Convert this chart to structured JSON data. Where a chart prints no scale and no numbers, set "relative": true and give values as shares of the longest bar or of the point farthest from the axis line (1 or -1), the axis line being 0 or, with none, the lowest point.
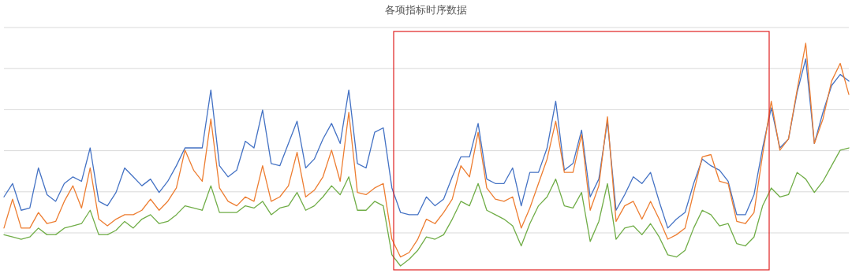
{
  "chart_data": {
    "type": "line",
    "title": "各项指标时序数据",
    "relative": true,
    "grid": "y",
    "marker": "none",
    "line_style": "solid",
    "categories": [
      null,
      null,
      null,
      null,
      null,
      null,
      null,
      null,
      null,
      null,
      null,
      null,
      null,
      null,
      null,
      null,
      null,
      null,
      null,
      null,
      null,
      null,
      null,
      null,
      null,
      null,
      null,
      null,
      null,
      null,
      null,
      null,
      null,
      null,
      null,
      null,
      null,
      null,
      null,
      null,
      null,
      null,
      null,
      null,
      null,
      null,
      null,
      null,
      null,
      null,
      null,
      null,
      null,
      null,
      null,
      null,
      null,
      null,
      null,
      null,
      null,
      null,
      null,
      null,
      null,
      null,
      null,
      null,
      null,
      null,
      null,
      null,
      null,
      null,
      null,
      null,
      null,
      null,
      null,
      null,
      null,
      null,
      null,
      null,
      null,
      null,
      null,
      null,
      null,
      null,
      null,
      null,
      null,
      null,
      null,
      null,
      null,
      null,
      null
    ],
    "series": [
      {
        "color": "#4472c4",
        "values": [
          0.31,
          0.37,
          0.25,
          0.26,
          0.44,
          0.32,
          0.29,
          0.37,
          0.4,
          0.38,
          0.53,
          0.29,
          0.27,
          0.33,
          0.44,
          0.4,
          0.36,
          0.39,
          0.33,
          0.38,
          0.45,
          0.53,
          0.53,
          0.53,
          0.79,
          0.45,
          0.4,
          0.43,
          0.56,
          0.53,
          0.7,
          0.46,
          0.45,
          0.55,
          0.65,
          0.44,
          0.48,
          0.57,
          0.64,
          0.55,
          0.79,
          0.46,
          0.44,
          0.6,
          0.62,
          0.35,
          0.24,
          0.23,
          0.23,
          0.31,
          0.27,
          0.3,
          0.4,
          0.49,
          0.49,
          0.64,
          0.39,
          0.37,
          0.37,
          0.44,
          0.27,
          0.42,
          0.42,
          0.53,
          0.74,
          0.43,
          0.46,
          0.61,
          0.31,
          0.39,
          0.65,
          0.25,
          0.32,
          0.4,
          0.37,
          0.42,
          0.29,
          0.17,
          0.21,
          0.24,
          0.37,
          0.48,
          0.45,
          0.43,
          0.38,
          0.23,
          0.23,
          0.32,
          0.53,
          0.71,
          0.53,
          0.57,
          0.78,
          0.93,
          0.55,
          0.69,
          0.81,
          0.86,
          0.83
        ]
      },
      {
        "color": "#ed7d31",
        "values": [
          0.17,
          0.3,
          0.17,
          0.17,
          0.24,
          0.19,
          0.2,
          0.29,
          0.36,
          0.26,
          0.44,
          0.21,
          0.18,
          0.21,
          0.23,
          0.23,
          0.25,
          0.3,
          0.25,
          0.29,
          0.35,
          0.52,
          0.43,
          0.38,
          0.66,
          0.35,
          0.29,
          0.27,
          0.31,
          0.29,
          0.45,
          0.29,
          0.31,
          0.36,
          0.51,
          0.31,
          0.34,
          0.4,
          0.52,
          0.38,
          0.69,
          0.33,
          0.32,
          0.35,
          0.37,
          0.12,
          0.04,
          0.06,
          0.12,
          0.21,
          0.19,
          0.24,
          0.3,
          0.45,
          0.4,
          0.6,
          0.35,
          0.3,
          0.29,
          0.31,
          0.17,
          0.26,
          0.37,
          0.48,
          0.65,
          0.42,
          0.42,
          0.59,
          0.25,
          0.36,
          0.67,
          0.2,
          0.27,
          0.29,
          0.21,
          0.29,
          0.21,
          0.12,
          0.14,
          0.17,
          0.33,
          0.49,
          0.5,
          0.38,
          0.37,
          0.2,
          0.19,
          0.24,
          0.5,
          0.74,
          0.52,
          0.57,
          0.79,
          1,
          0.55,
          0.66,
          0.83,
          0.91,
          0.77
        ]
      },
      {
        "color": "#70ad47",
        "values": [
          0.14,
          0.13,
          0.12,
          0.13,
          0.17,
          0.14,
          0.14,
          0.17,
          0.18,
          0.19,
          0.25,
          0.14,
          0.14,
          0.16,
          0.2,
          0.17,
          0.21,
          0.23,
          0.19,
          0.2,
          0.23,
          0.27,
          0.26,
          0.25,
          0.36,
          0.24,
          0.24,
          0.24,
          0.27,
          0.26,
          0.29,
          0.23,
          0.26,
          0.27,
          0.33,
          0.25,
          0.27,
          0.31,
          0.36,
          0.32,
          0.4,
          0.25,
          0.25,
          0.29,
          0.27,
          0.05,
          0,
          0.03,
          0.07,
          0.13,
          0.12,
          0.14,
          0.21,
          0.29,
          0.27,
          0.37,
          0.25,
          0.23,
          0.21,
          0.18,
          0.09,
          0.19,
          0.27,
          0.31,
          0.39,
          0.27,
          0.26,
          0.33,
          0.11,
          0.2,
          0.37,
          0.12,
          0.17,
          0.18,
          0.14,
          0.19,
          0.13,
          0.05,
          0.04,
          0.07,
          0.17,
          0.25,
          0.23,
          0.18,
          0.19,
          0.1,
          0.09,
          0.13,
          0.27,
          0.35,
          0.31,
          0.32,
          0.42,
          0.39,
          0.33,
          0.38,
          0.45,
          0.52,
          0.53
        ]
      }
    ]
  }
}
